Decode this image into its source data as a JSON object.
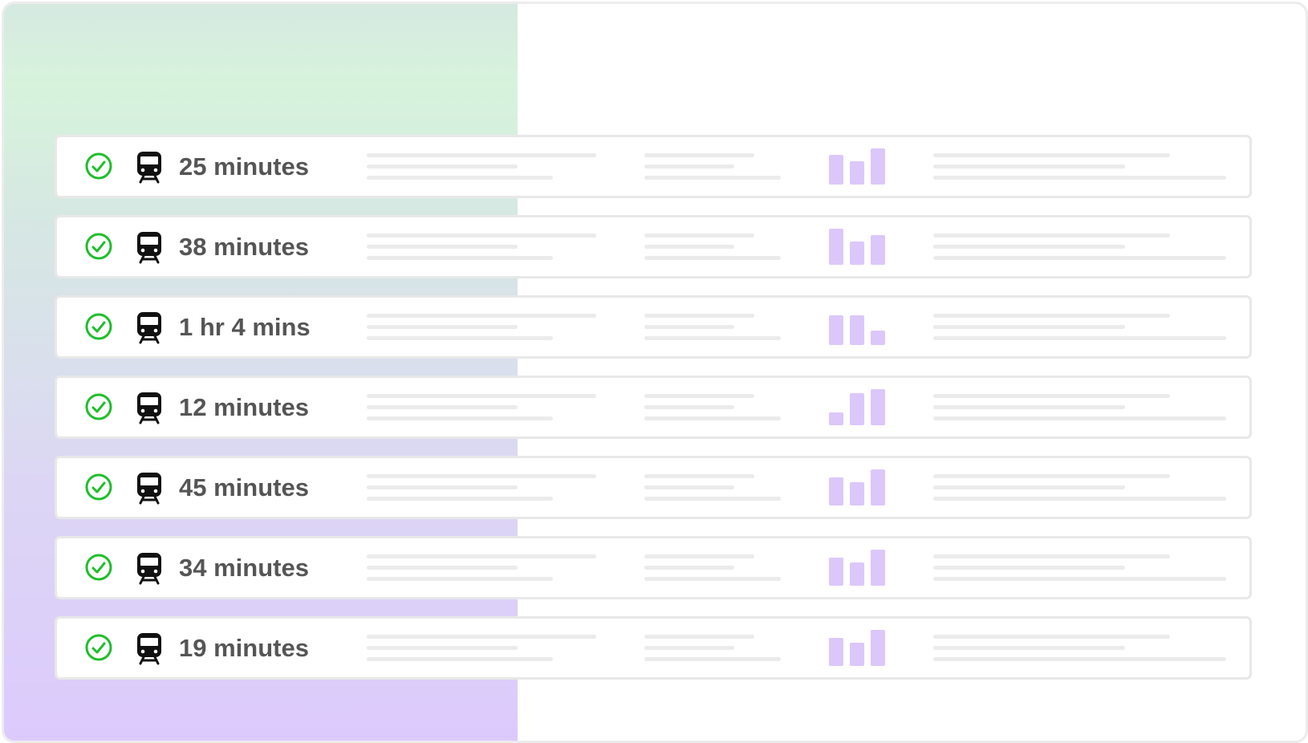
{
  "rows": [
    "25 minutes",
    "38 minutes",
    "1 hr 4 mins",
    "12 minutes",
    "45 minutes",
    "34 minutes",
    "19 minutes"
  ]
}
